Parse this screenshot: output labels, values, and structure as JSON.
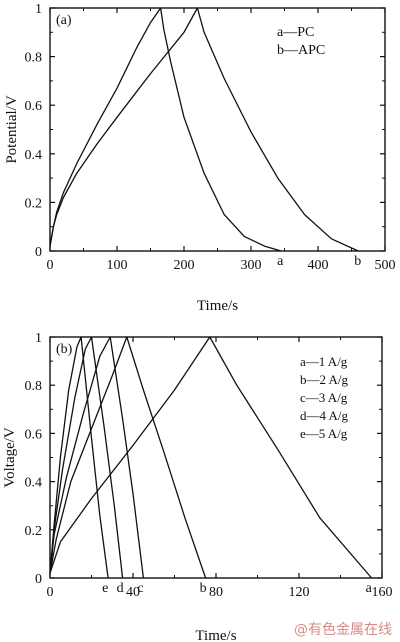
{
  "watermark": "@有色金属在线",
  "chart_data": [
    {
      "type": "line",
      "panel_label": "(a)",
      "xlabel": "Time/s",
      "ylabel": "Potential/V",
      "xlim": [
        0,
        500
      ],
      "ylim": [
        0,
        1.0
      ],
      "xticks": [
        0,
        100,
        200,
        300,
        400,
        500
      ],
      "yticks": [
        0,
        0.2,
        0.4,
        0.6,
        0.8,
        1.0
      ],
      "legend": [
        "a—PC",
        "b—APC"
      ],
      "series": [
        {
          "name": "a",
          "end_label": "a",
          "x": [
            0,
            5,
            10,
            20,
            40,
            70,
            100,
            130,
            150,
            165,
            170,
            180,
            200,
            230,
            260,
            290,
            320,
            345
          ],
          "y": [
            0.02,
            0.1,
            0.16,
            0.24,
            0.36,
            0.52,
            0.67,
            0.84,
            0.94,
            1.0,
            0.91,
            0.78,
            0.55,
            0.32,
            0.15,
            0.06,
            0.02,
            0.0
          ]
        },
        {
          "name": "b",
          "end_label": "b",
          "x": [
            0,
            5,
            10,
            20,
            40,
            70,
            100,
            150,
            200,
            220,
            230,
            260,
            300,
            340,
            380,
            420,
            460
          ],
          "y": [
            0.02,
            0.1,
            0.15,
            0.22,
            0.32,
            0.44,
            0.55,
            0.73,
            0.9,
            1.0,
            0.9,
            0.71,
            0.49,
            0.3,
            0.15,
            0.05,
            0.0
          ]
        }
      ]
    },
    {
      "type": "line",
      "panel_label": "(b)",
      "xlabel": "Time/s",
      "ylabel": "Voltage/V",
      "xlim": [
        0,
        160
      ],
      "ylim": [
        0,
        1.0
      ],
      "xticks": [
        0,
        40,
        80,
        120,
        160
      ],
      "yticks": [
        0,
        0.2,
        0.4,
        0.6,
        0.8,
        1.0
      ],
      "legend": [
        "a—1 A/g",
        "b—2 A/g",
        "c—3 A/g",
        "d—4 A/g",
        "e—5 A/g"
      ],
      "series": [
        {
          "name": "a",
          "end_label": "a",
          "x": [
            0,
            5,
            20,
            40,
            60,
            77,
            90,
            110,
            130,
            155
          ],
          "y": [
            0.02,
            0.15,
            0.33,
            0.55,
            0.78,
            1.0,
            0.8,
            0.53,
            0.25,
            0.0
          ]
        },
        {
          "name": "b",
          "end_label": "b",
          "x": [
            0,
            3,
            10,
            20,
            30,
            37,
            45,
            55,
            65,
            75
          ],
          "y": [
            0.02,
            0.16,
            0.4,
            0.62,
            0.84,
            1.0,
            0.78,
            0.52,
            0.25,
            0.0
          ]
        },
        {
          "name": "c",
          "end_label": "c",
          "x": [
            0,
            2,
            8,
            16,
            24,
            29,
            35,
            40,
            45
          ],
          "y": [
            0.02,
            0.18,
            0.42,
            0.68,
            0.92,
            1.0,
            0.66,
            0.35,
            0.0
          ]
        },
        {
          "name": "d",
          "end_label": "d",
          "x": [
            0,
            2,
            6,
            12,
            17,
            20,
            26,
            31,
            35
          ],
          "y": [
            0.02,
            0.2,
            0.45,
            0.75,
            0.95,
            1.0,
            0.63,
            0.3,
            0.0
          ]
        },
        {
          "name": "e",
          "end_label": "e",
          "x": [
            0,
            2,
            5,
            9,
            13,
            15,
            20,
            24,
            28
          ],
          "y": [
            0.02,
            0.22,
            0.5,
            0.78,
            0.96,
            1.0,
            0.58,
            0.26,
            0.0
          ]
        }
      ]
    }
  ]
}
